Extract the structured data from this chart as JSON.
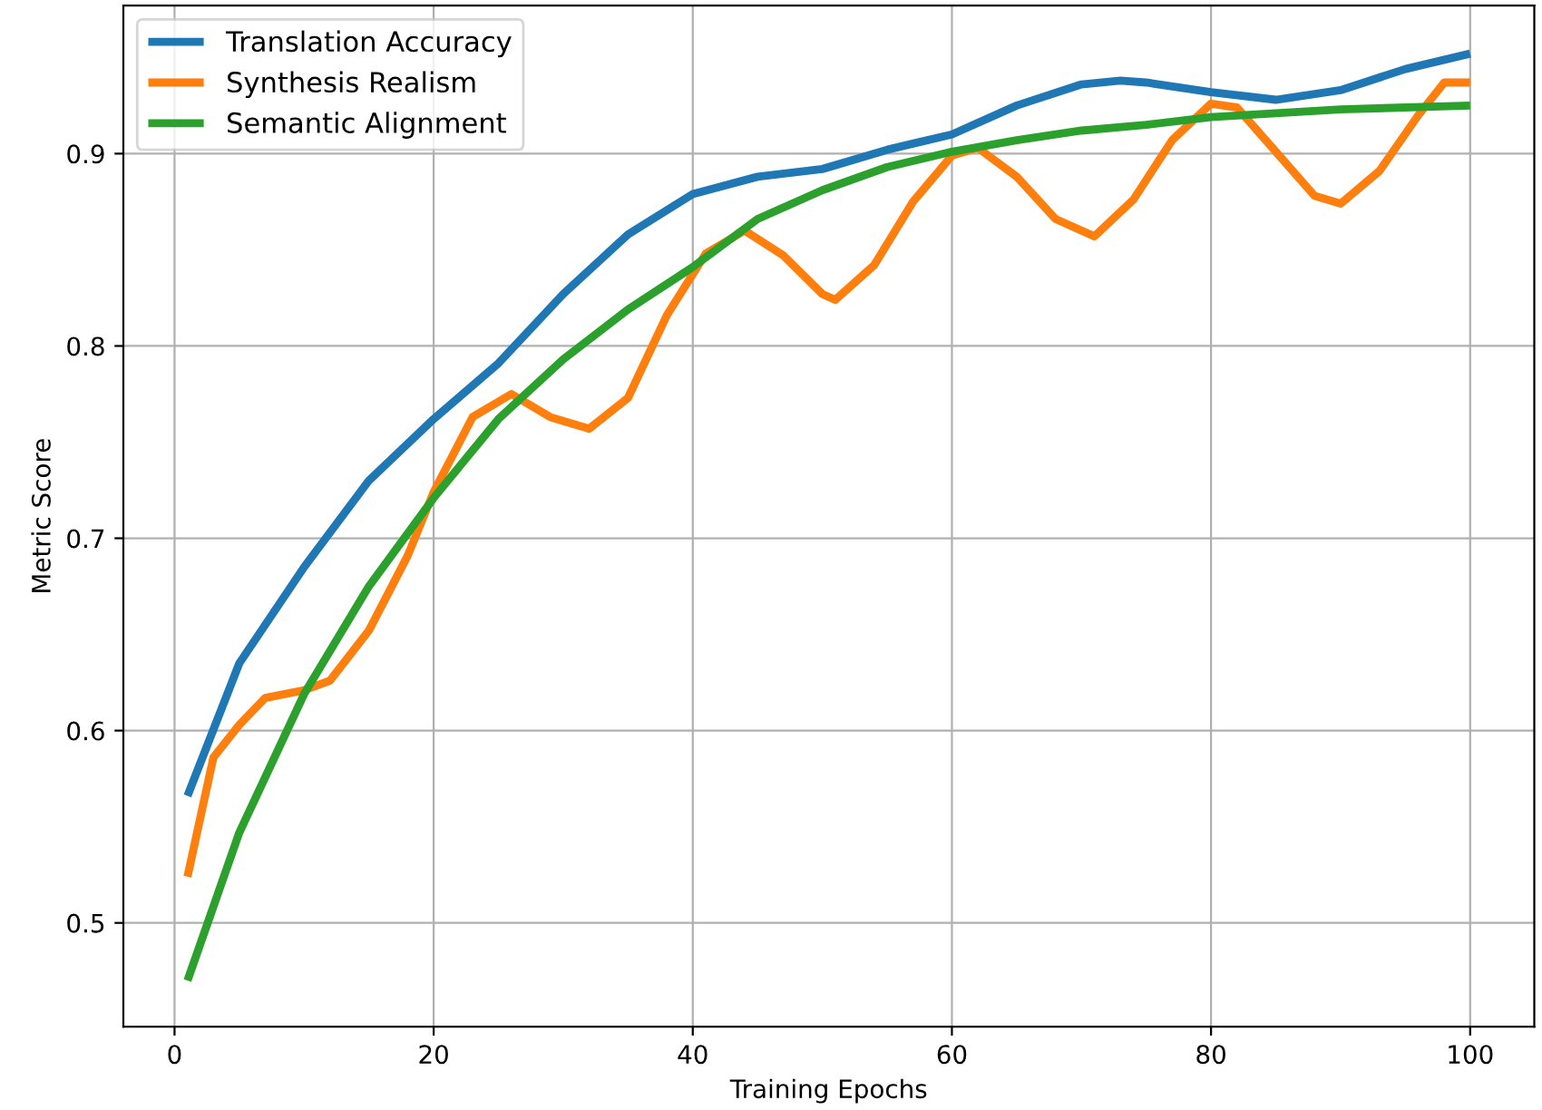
{
  "chart_data": {
    "type": "line",
    "xlabel": "Training Epochs",
    "ylabel": "Metric Score",
    "xlim": [
      -3.95,
      104.95
    ],
    "ylim": [
      0.446,
      0.977
    ],
    "xticks": [
      0,
      20,
      40,
      60,
      80,
      100
    ],
    "yticks": [
      0.5,
      0.6,
      0.7,
      0.8,
      0.9
    ],
    "grid": true,
    "legend": "top left",
    "line_style": "solid",
    "marker": "none",
    "series": [
      {
        "name": "Translation Accuracy",
        "color": "#1f77b4",
        "x": [
          1,
          5,
          10,
          15,
          20,
          25,
          30,
          35,
          40,
          45,
          50,
          55,
          60,
          65,
          70,
          73,
          75,
          80,
          85,
          90,
          95,
          100
        ],
        "values": [
          0.566,
          0.635,
          0.685,
          0.73,
          0.762,
          0.791,
          0.827,
          0.858,
          0.879,
          0.888,
          0.892,
          0.902,
          0.91,
          0.925,
          0.936,
          0.938,
          0.937,
          0.932,
          0.928,
          0.933,
          0.944,
          0.952
        ]
      },
      {
        "name": "Synthesis Realism",
        "color": "#ff7f0e",
        "x": [
          1,
          3,
          5,
          7,
          10,
          12,
          15,
          18,
          20,
          23,
          26,
          29,
          32,
          35,
          38,
          41,
          44,
          47,
          50,
          51,
          54,
          57,
          60,
          62,
          65,
          68,
          71,
          74,
          77,
          80,
          82,
          85,
          88,
          90,
          93,
          96,
          98,
          100
        ],
        "values": [
          0.524,
          0.586,
          0.603,
          0.617,
          0.621,
          0.626,
          0.652,
          0.691,
          0.724,
          0.763,
          0.775,
          0.763,
          0.757,
          0.773,
          0.816,
          0.848,
          0.86,
          0.847,
          0.827,
          0.824,
          0.842,
          0.875,
          0.899,
          0.903,
          0.888,
          0.866,
          0.857,
          0.876,
          0.907,
          0.926,
          0.924,
          0.901,
          0.878,
          0.874,
          0.891,
          0.92,
          0.937,
          0.937
        ]
      },
      {
        "name": "Semantic Alignment",
        "color": "#2ca02c",
        "x": [
          1,
          5,
          10,
          15,
          20,
          25,
          30,
          35,
          40,
          45,
          50,
          55,
          60,
          65,
          70,
          75,
          80,
          90,
          100
        ],
        "values": [
          0.47,
          0.547,
          0.619,
          0.675,
          0.721,
          0.762,
          0.793,
          0.819,
          0.841,
          0.866,
          0.881,
          0.893,
          0.901,
          0.907,
          0.912,
          0.915,
          0.919,
          0.923,
          0.925
        ]
      }
    ]
  }
}
